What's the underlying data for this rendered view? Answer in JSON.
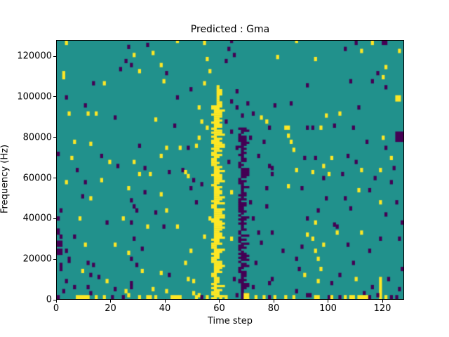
{
  "chart_data": {
    "type": "heatmap",
    "title": "Predicted : Gma",
    "xlabel": "Time step",
    "ylabel": "Frequency (Hz)",
    "x_ticks": [
      0,
      20,
      40,
      60,
      80,
      100,
      120
    ],
    "y_ticks": [
      0,
      20000,
      40000,
      60000,
      80000,
      100000,
      120000
    ],
    "x_range": [
      0,
      128
    ],
    "y_range": [
      0,
      128000
    ],
    "grid": {
      "cols": 128,
      "rows": 128
    },
    "colors": {
      "background": "#21918c",
      "high": "#fde725",
      "low": "#440154",
      "figure_bg": "#ffffff",
      "text": "#000000",
      "axis": "#000000"
    },
    "legend": "none",
    "bands": [
      {
        "name": "predicted-call-yellow-band",
        "value": "high",
        "col": 57,
        "rows": [
          0,
          105
        ],
        "width": [
          2,
          4
        ],
        "narrow_above_row": 95,
        "narrow_col": 59
      },
      {
        "name": "shadow-purple-band",
        "value": "low",
        "col": 67,
        "rows": [
          0,
          84
        ],
        "width": [
          1,
          3
        ]
      }
    ],
    "cells": [
      [
        3,
        126,
        "h"
      ],
      [
        26,
        124,
        "l"
      ],
      [
        25,
        117,
        "l"
      ],
      [
        23,
        113,
        "l"
      ],
      [
        2,
        109,
        "h",
        1,
        4
      ],
      [
        13,
        106,
        "l"
      ],
      [
        17,
        106,
        "h"
      ],
      [
        3,
        99,
        "l"
      ],
      [
        10,
        95,
        "l"
      ],
      [
        4,
        91,
        "h"
      ],
      [
        11,
        91,
        "h"
      ],
      [
        14,
        91,
        "h"
      ],
      [
        21,
        89,
        "l"
      ],
      [
        6,
        77,
        "h"
      ],
      [
        0,
        71,
        "l"
      ],
      [
        5,
        69,
        "h"
      ],
      [
        19,
        67,
        "h"
      ],
      [
        22,
        65,
        "l"
      ],
      [
        7,
        63,
        "l"
      ],
      [
        12,
        76,
        "h"
      ],
      [
        16,
        70,
        "l"
      ],
      [
        3,
        57,
        "h"
      ],
      [
        10,
        57,
        "l"
      ],
      [
        16,
        58,
        "h"
      ],
      [
        26,
        54,
        "h"
      ],
      [
        9,
        50,
        "l"
      ],
      [
        12,
        49,
        "h"
      ],
      [
        27,
        48,
        "l"
      ],
      [
        1,
        43,
        "l"
      ],
      [
        8,
        39,
        "h"
      ],
      [
        24,
        39,
        "h"
      ],
      [
        18,
        37,
        "l"
      ],
      [
        0,
        39,
        "l"
      ],
      [
        0,
        32,
        "l",
        1,
        3
      ],
      [
        1,
        30,
        "l"
      ],
      [
        6,
        30,
        "l"
      ],
      [
        0,
        26,
        "l",
        2,
        3
      ],
      [
        10,
        26,
        "h"
      ],
      [
        21,
        26,
        "h"
      ],
      [
        0,
        22,
        "l",
        2,
        3
      ],
      [
        3,
        23,
        "l"
      ],
      [
        26,
        22,
        "h"
      ],
      [
        27,
        19,
        "l"
      ],
      [
        4,
        18,
        "l",
        1,
        3
      ],
      [
        11,
        17,
        "l"
      ],
      [
        13,
        16,
        "l"
      ],
      [
        1,
        14,
        "l",
        1,
        4
      ],
      [
        9,
        13,
        "h"
      ],
      [
        12,
        11,
        "l"
      ],
      [
        15,
        10,
        "l"
      ],
      [
        3,
        8,
        "l"
      ],
      [
        18,
        8,
        "h"
      ],
      [
        27,
        7,
        "l"
      ],
      [
        6,
        5,
        "l"
      ],
      [
        11,
        5,
        "l"
      ],
      [
        21,
        4,
        "l"
      ],
      [
        25,
        3,
        "h"
      ],
      [
        12,
        2,
        "l"
      ],
      [
        26,
        1,
        "h"
      ],
      [
        7,
        0,
        "h",
        5,
        2
      ],
      [
        0,
        0,
        "l"
      ],
      [
        17,
        0,
        "h"
      ],
      [
        24,
        0,
        "l"
      ],
      [
        14,
        0,
        "h"
      ],
      [
        20,
        0,
        "l"
      ],
      [
        2,
        3,
        "l"
      ],
      [
        33,
        125,
        "l"
      ],
      [
        54,
        126,
        "h"
      ],
      [
        28,
        120,
        "h"
      ],
      [
        35,
        121,
        "h"
      ],
      [
        27,
        115,
        "l"
      ],
      [
        30,
        112,
        "h"
      ],
      [
        38,
        115,
        "h"
      ],
      [
        40,
        111,
        "l"
      ],
      [
        39,
        107,
        "h"
      ],
      [
        49,
        103,
        "l"
      ],
      [
        44,
        99,
        "l"
      ],
      [
        52,
        94,
        "h"
      ],
      [
        53,
        87,
        "h"
      ],
      [
        52,
        79,
        "h"
      ],
      [
        30,
        75,
        "l"
      ],
      [
        40,
        74,
        "h"
      ],
      [
        45,
        74,
        "h"
      ],
      [
        48,
        74,
        "l"
      ],
      [
        38,
        70,
        "h"
      ],
      [
        28,
        67,
        "h"
      ],
      [
        32,
        64,
        "l"
      ],
      [
        46,
        63,
        "l"
      ],
      [
        51,
        75,
        "h"
      ],
      [
        36,
        88,
        "h"
      ],
      [
        43,
        85,
        "l"
      ],
      [
        44,
        127,
        "h"
      ],
      [
        30,
        61,
        "h"
      ],
      [
        34,
        61,
        "h"
      ],
      [
        41,
        62,
        "l"
      ],
      [
        47,
        62,
        "h"
      ],
      [
        48,
        60,
        "h"
      ],
      [
        50,
        58,
        "l"
      ],
      [
        53,
        56,
        "l"
      ],
      [
        49,
        54,
        "l"
      ],
      [
        32,
        52,
        "l"
      ],
      [
        38,
        51,
        "h"
      ],
      [
        51,
        47,
        "l"
      ],
      [
        28,
        45,
        "l"
      ],
      [
        29,
        43,
        "l"
      ],
      [
        36,
        42,
        "l"
      ],
      [
        40,
        43,
        "h"
      ],
      [
        27,
        37,
        "l"
      ],
      [
        33,
        35,
        "h"
      ],
      [
        39,
        35,
        "l"
      ],
      [
        44,
        35,
        "h"
      ],
      [
        28,
        29,
        "l"
      ],
      [
        31,
        24,
        "l"
      ],
      [
        49,
        23,
        "h"
      ],
      [
        29,
        16,
        "l"
      ],
      [
        31,
        13,
        "h"
      ],
      [
        38,
        12,
        "h"
      ],
      [
        41,
        11,
        "l"
      ],
      [
        48,
        9,
        "h"
      ],
      [
        50,
        8,
        "h"
      ],
      [
        27,
        5,
        "l"
      ],
      [
        35,
        4,
        "h"
      ],
      [
        40,
        3,
        "h"
      ],
      [
        50,
        2,
        "h"
      ],
      [
        52,
        1,
        "h"
      ],
      [
        30,
        0,
        "h"
      ],
      [
        33,
        0,
        "h",
        2,
        2
      ],
      [
        36,
        0,
        "h"
      ],
      [
        42,
        0,
        "h",
        3,
        2
      ],
      [
        45,
        0,
        "h"
      ],
      [
        51,
        0,
        "h"
      ],
      [
        53,
        0,
        "l"
      ],
      [
        47,
        17,
        "h"
      ],
      [
        54,
        30,
        "h"
      ],
      [
        63,
        123,
        "l"
      ],
      [
        65,
        120,
        "l"
      ],
      [
        55,
        118,
        "h"
      ],
      [
        62,
        117,
        "l"
      ],
      [
        56,
        112,
        "h"
      ],
      [
        54,
        106,
        "h"
      ],
      [
        66,
        102,
        "l"
      ],
      [
        64,
        97,
        "l"
      ],
      [
        66,
        94,
        "l"
      ],
      [
        72,
        91,
        "l"
      ],
      [
        75,
        89,
        "h"
      ],
      [
        62,
        87,
        "l"
      ],
      [
        55,
        84,
        "h"
      ],
      [
        64,
        82,
        "l"
      ],
      [
        71,
        79,
        "l"
      ],
      [
        76,
        77,
        "l"
      ],
      [
        66,
        74,
        "l"
      ],
      [
        63,
        67,
        "l"
      ],
      [
        78,
        65,
        "l"
      ],
      [
        64,
        127,
        "l"
      ],
      [
        74,
        70,
        "l"
      ],
      [
        68,
        90,
        "l"
      ],
      [
        70,
        96,
        "l"
      ],
      [
        56,
        39,
        "h"
      ],
      [
        72,
        39,
        "l"
      ],
      [
        74,
        32,
        "l"
      ],
      [
        64,
        29,
        "h"
      ],
      [
        75,
        27,
        "l"
      ],
      [
        73,
        17,
        "l"
      ],
      [
        65,
        9,
        "l"
      ],
      [
        72,
        5,
        "l"
      ],
      [
        66,
        1,
        "l"
      ],
      [
        78,
        0,
        "l"
      ],
      [
        62,
        0,
        "h"
      ],
      [
        76,
        0,
        "h"
      ],
      [
        71,
        47,
        "l"
      ],
      [
        64,
        52,
        "h"
      ],
      [
        77,
        45,
        "l"
      ],
      [
        69,
        0,
        "h",
        2,
        3
      ],
      [
        55,
        0,
        "h"
      ],
      [
        60,
        0,
        "h"
      ],
      [
        73,
        0,
        "h"
      ],
      [
        81,
        119,
        "h"
      ],
      [
        95,
        118,
        "h"
      ],
      [
        88,
        127,
        "h"
      ],
      [
        92,
        105,
        "l"
      ],
      [
        86,
        96,
        "l"
      ],
      [
        80,
        95,
        "l"
      ],
      [
        77,
        87,
        "h"
      ],
      [
        78,
        84,
        "l"
      ],
      [
        84,
        84,
        "h",
        2,
        2
      ],
      [
        92,
        84,
        "l"
      ],
      [
        94,
        84,
        "l"
      ],
      [
        97,
        84,
        "h"
      ],
      [
        102,
        85,
        "l"
      ],
      [
        86,
        77,
        "h"
      ],
      [
        87,
        73,
        "h"
      ],
      [
        91,
        69,
        "l"
      ],
      [
        95,
        69,
        "l"
      ],
      [
        101,
        69,
        "h"
      ],
      [
        79,
        64,
        "l"
      ],
      [
        88,
        63,
        "h"
      ],
      [
        98,
        65,
        "h"
      ],
      [
        85,
        80,
        "h"
      ],
      [
        99,
        90,
        "h"
      ],
      [
        79,
        61,
        "l"
      ],
      [
        94,
        62,
        "h"
      ],
      [
        98,
        59,
        "l"
      ],
      [
        100,
        61,
        "h"
      ],
      [
        77,
        54,
        "l"
      ],
      [
        85,
        55,
        "h"
      ],
      [
        90,
        54,
        "l"
      ],
      [
        99,
        49,
        "l"
      ],
      [
        96,
        43,
        "l"
      ],
      [
        92,
        39,
        "l"
      ],
      [
        95,
        37,
        "h"
      ],
      [
        102,
        36,
        "l"
      ],
      [
        79,
        32,
        "l"
      ],
      [
        92,
        31,
        "h"
      ],
      [
        103,
        32,
        "h"
      ],
      [
        94,
        29,
        "h"
      ],
      [
        90,
        25,
        "l"
      ],
      [
        83,
        23,
        "l"
      ],
      [
        95,
        23,
        "h"
      ],
      [
        88,
        19,
        "l"
      ],
      [
        96,
        19,
        "h"
      ],
      [
        89,
        14,
        "l"
      ],
      [
        97,
        14,
        "h"
      ],
      [
        91,
        11,
        "h"
      ],
      [
        79,
        9,
        "l"
      ],
      [
        78,
        7,
        "l"
      ],
      [
        96,
        8,
        "h"
      ],
      [
        101,
        7,
        "l"
      ],
      [
        88,
        3,
        "l"
      ],
      [
        92,
        1,
        "l",
        2,
        2
      ],
      [
        95,
        0,
        "h",
        2,
        2
      ],
      [
        87,
        0,
        "h"
      ],
      [
        100,
        0,
        "l"
      ],
      [
        98,
        26,
        "h"
      ],
      [
        80,
        0,
        "h"
      ],
      [
        84,
        0,
        "h"
      ],
      [
        110,
        126,
        "l"
      ],
      [
        116,
        126,
        "h"
      ],
      [
        120,
        126,
        "l",
        2,
        2
      ],
      [
        106,
        123,
        "l"
      ],
      [
        112,
        122,
        "h"
      ],
      [
        126,
        122,
        "h"
      ],
      [
        121,
        114,
        "h"
      ],
      [
        118,
        111,
        "l"
      ],
      [
        120,
        109,
        "h"
      ],
      [
        108,
        107,
        "l"
      ],
      [
        116,
        107,
        "l"
      ],
      [
        121,
        104,
        "l"
      ],
      [
        125,
        98,
        "h",
        2,
        3
      ],
      [
        111,
        94,
        "l"
      ],
      [
        104,
        91,
        "h"
      ],
      [
        109,
        84,
        "l"
      ],
      [
        114,
        77,
        "l"
      ],
      [
        121,
        74,
        "l"
      ],
      [
        125,
        78,
        "l",
        3,
        5
      ],
      [
        123,
        69,
        "h"
      ],
      [
        110,
        67,
        "l"
      ],
      [
        112,
        63,
        "h"
      ],
      [
        119,
        63,
        "h"
      ],
      [
        124,
        64,
        "l"
      ],
      [
        107,
        70,
        "l"
      ],
      [
        120,
        79,
        "h"
      ],
      [
        105,
        61,
        "l"
      ],
      [
        117,
        59,
        "l"
      ],
      [
        123,
        57,
        "l"
      ],
      [
        111,
        53,
        "h"
      ],
      [
        115,
        53,
        "l"
      ],
      [
        106,
        49,
        "l"
      ],
      [
        119,
        47,
        "h"
      ],
      [
        125,
        47,
        "l"
      ],
      [
        108,
        44,
        "l"
      ],
      [
        121,
        41,
        "l"
      ],
      [
        127,
        37,
        "l"
      ],
      [
        103,
        35,
        "l"
      ],
      [
        112,
        32,
        "h"
      ],
      [
        119,
        29,
        "l"
      ],
      [
        126,
        29,
        "l"
      ],
      [
        107,
        26,
        "l"
      ],
      [
        115,
        23,
        "l"
      ],
      [
        109,
        17,
        "l"
      ],
      [
        127,
        14,
        "l"
      ],
      [
        104,
        11,
        "l"
      ],
      [
        110,
        9,
        "h"
      ],
      [
        122,
        9,
        "l"
      ],
      [
        116,
        5,
        "l"
      ],
      [
        126,
        4,
        "l"
      ],
      [
        119,
        0,
        "h",
        1,
        11
      ],
      [
        113,
        2,
        "l"
      ],
      [
        118,
        1,
        "l"
      ],
      [
        108,
        0,
        "h",
        2,
        2
      ],
      [
        111,
        0,
        "h",
        4,
        2
      ],
      [
        104,
        0,
        "l"
      ],
      [
        115,
        0,
        "l"
      ],
      [
        123,
        0,
        "l"
      ],
      [
        125,
        0,
        "l"
      ],
      [
        121,
        0,
        "h"
      ],
      [
        101,
        0,
        "h"
      ],
      [
        106,
        0,
        "h"
      ]
    ]
  }
}
